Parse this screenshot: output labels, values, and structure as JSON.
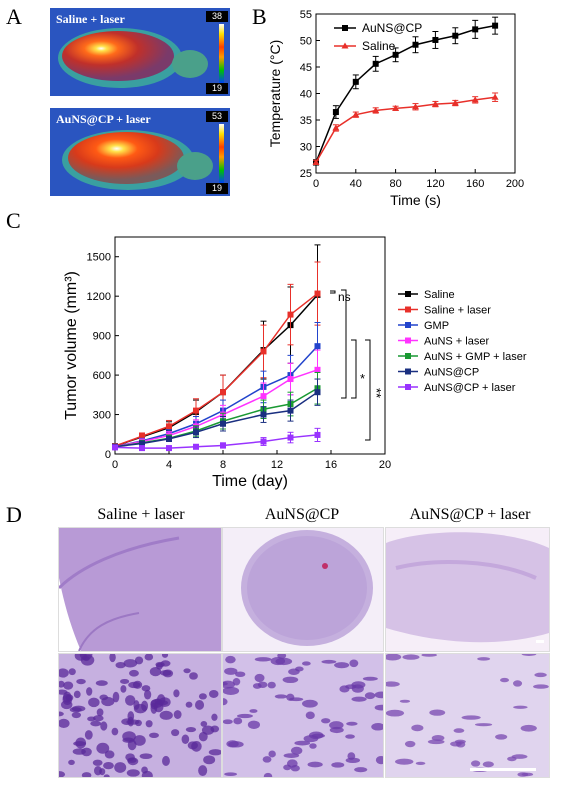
{
  "panels": {
    "a": {
      "letter": "A",
      "images": [
        {
          "label": "Saline + laser",
          "scale_max": "38",
          "scale_min": "19"
        },
        {
          "label": "AuNS@CP + laser",
          "scale_max": "53",
          "scale_min": "19"
        }
      ]
    },
    "b": {
      "letter": "B"
    },
    "c": {
      "letter": "C"
    },
    "d": {
      "letter": "D",
      "titles": [
        "Saline + laser",
        "AuNS@CP",
        "AuNS@CP + laser"
      ]
    }
  },
  "chart_data": [
    {
      "type": "line",
      "panel": "B",
      "xlabel": "Time (s)",
      "ylabel": "Temperature (°C)",
      "xlim": [
        0,
        200
      ],
      "ylim": [
        25,
        55
      ],
      "xticks": [
        "0",
        "40",
        "80",
        "120",
        "160",
        "200"
      ],
      "yticks": [
        "25",
        "30",
        "35",
        "40",
        "45",
        "50",
        "55"
      ],
      "legend_position": "top-right",
      "series": [
        {
          "name": "AuNS@CP",
          "color": "#000000",
          "x": [
            0,
            20,
            40,
            60,
            80,
            100,
            120,
            140,
            160,
            180
          ],
          "y": [
            27,
            36.5,
            42.2,
            45.6,
            47.3,
            49.2,
            50.1,
            50.9,
            52.1,
            52.8
          ],
          "err": [
            0.5,
            1.2,
            1.3,
            1.4,
            1.3,
            1.5,
            1.6,
            1.5,
            1.7,
            1.6
          ]
        },
        {
          "name": "Saline",
          "color": "#e8302a",
          "x": [
            0,
            20,
            40,
            60,
            80,
            100,
            120,
            140,
            160,
            180
          ],
          "y": [
            27,
            33.5,
            36,
            36.8,
            37.2,
            37.5,
            38,
            38.2,
            38.8,
            39.3
          ],
          "err": [
            0.4,
            0.6,
            0.5,
            0.5,
            0.4,
            0.6,
            0.5,
            0.5,
            0.6,
            0.8
          ]
        }
      ]
    },
    {
      "type": "line",
      "panel": "C",
      "xlabel": "Time (day)",
      "ylabel": "Tumor volume (mm³)",
      "xlim": [
        0,
        20
      ],
      "ylim": [
        0,
        1650
      ],
      "xticks": [
        "0",
        "4",
        "8",
        "12",
        "16",
        "20"
      ],
      "yticks": [
        "0",
        "300",
        "600",
        "900",
        "1200",
        "1500"
      ],
      "legend_position": "right",
      "x": [
        0,
        2,
        4,
        6,
        8,
        11,
        13,
        15
      ],
      "series": [
        {
          "name": "Saline",
          "color": "#000000",
          "y": [
            60,
            130,
            200,
            320,
            470,
            790,
            980,
            1210
          ],
          "err": [
            10,
            25,
            45,
            90,
            130,
            220,
            290,
            380
          ]
        },
        {
          "name": "Saline + laser",
          "color": "#e8302a",
          "y": [
            60,
            135,
            210,
            330,
            470,
            780,
            1060,
            1220
          ],
          "err": [
            10,
            25,
            45,
            90,
            130,
            200,
            230,
            240
          ]
        },
        {
          "name": "GMP",
          "color": "#2244cc",
          "y": [
            55,
            100,
            155,
            230,
            330,
            510,
            600,
            820
          ],
          "err": [
            8,
            18,
            30,
            55,
            80,
            120,
            150,
            180
          ]
        },
        {
          "name": "AuNS + laser",
          "color": "#ff33ff",
          "y": [
            55,
            95,
            140,
            210,
            300,
            440,
            570,
            640
          ],
          "err": [
            8,
            15,
            30,
            50,
            70,
            100,
            120,
            150
          ]
        },
        {
          "name": "AuNS + GMP + laser",
          "color": "#1a9933",
          "y": [
            55,
            85,
            120,
            175,
            250,
            340,
            380,
            500
          ],
          "err": [
            8,
            15,
            25,
            40,
            60,
            70,
            90,
            120
          ]
        },
        {
          "name": "AuNS@CP",
          "color": "#1a2f80",
          "y": [
            55,
            80,
            115,
            165,
            230,
            300,
            330,
            470
          ],
          "err": [
            8,
            15,
            20,
            40,
            55,
            60,
            80,
            100
          ]
        },
        {
          "name": "AuNS@CP + laser",
          "color": "#9933ff",
          "y": [
            50,
            45,
            45,
            55,
            65,
            95,
            125,
            145
          ],
          "err": [
            5,
            8,
            10,
            15,
            20,
            30,
            40,
            50
          ]
        }
      ],
      "annotations": [
        "ns",
        "*",
        "**"
      ]
    }
  ]
}
